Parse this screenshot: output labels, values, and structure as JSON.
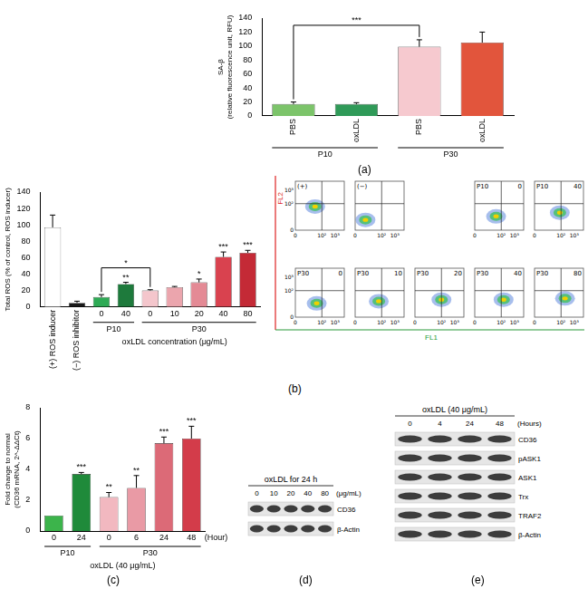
{
  "chart_data": [
    {
      "panel": "(a)",
      "type": "bar",
      "y_label": [
        "SA-β",
        "(relative fluorescence unit, RFU)"
      ],
      "categories": [
        "PBS",
        "oxLDL",
        "PBS",
        "oxLDL"
      ],
      "groups": [
        "P10",
        "P10",
        "P30",
        "P30"
      ],
      "values": [
        17,
        17,
        99,
        105
      ],
      "errors": [
        3,
        2,
        10,
        15
      ],
      "colors": [
        "#7cc46a",
        "#2f9a58",
        "#f6c9cf",
        "#e2553c"
      ],
      "ylim": [
        0,
        140
      ],
      "yticks": [
        0,
        20,
        40,
        60,
        80,
        100,
        120,
        140
      ],
      "grid": false,
      "brackets": [
        {
          "between": [
            0,
            2
          ],
          "label": "***"
        }
      ]
    },
    {
      "panel": "(b)",
      "type": "bar",
      "y_label": "Total ROS (% of control, ROS inducer)",
      "x_label": "oxLDL concentration (μg/mL)",
      "categories": [
        "(+) ROS inducer",
        "(−) ROS inhibitor",
        "0",
        "40",
        "0",
        "10",
        "20",
        "40",
        "80"
      ],
      "groups": [
        null,
        null,
        "P10",
        "P10",
        "P30",
        "P30",
        "P30",
        "P30",
        "P30"
      ],
      "values": [
        97,
        5,
        12,
        28,
        20,
        24,
        30,
        61,
        66
      ],
      "errors": [
        15,
        2,
        3,
        2,
        1,
        1,
        4,
        6,
        3
      ],
      "annotations": [
        null,
        null,
        null,
        "**",
        null,
        null,
        "*",
        "***",
        "***"
      ],
      "colors": [
        "#ffffff",
        "#1a1a1a",
        "#2eab55",
        "#1e7a3c",
        "#f4c6cc",
        "#eba5ad",
        "#e48a95",
        "#d9424f",
        "#c42a36"
      ],
      "ylim": [
        0,
        140
      ],
      "yticks": [
        0,
        20,
        40,
        60,
        80,
        100,
        120,
        140
      ],
      "grid": false,
      "brackets": [
        {
          "between": [
            2,
            4
          ],
          "label": "*"
        }
      ]
    },
    {
      "panel": "(c)",
      "type": "bar",
      "y_label": [
        "Fold change to normal",
        "(CD36 mRNA, 2^-ΔΔCt)"
      ],
      "x_label": "oxLDL (40 μg/mL)",
      "x_unit": "(Hour)",
      "categories": [
        "0",
        "24",
        "0",
        "6",
        "24",
        "48"
      ],
      "groups": [
        "P10",
        "P10",
        "P30",
        "P30",
        "P30",
        "P30"
      ],
      "values": [
        1,
        3.7,
        2.2,
        2.8,
        5.7,
        6.0
      ],
      "errors": [
        0,
        0.1,
        0.3,
        0.8,
        0.4,
        0.8
      ],
      "annotations": [
        null,
        "***",
        "**",
        "**",
        "***",
        "***"
      ],
      "colors": [
        "#3cb44b",
        "#1f8a3a",
        "#f2b8c0",
        "#e99aa5",
        "#dc6a77",
        "#d33c4a"
      ],
      "ylim": [
        0,
        8
      ],
      "yticks": [
        0,
        2,
        4,
        6,
        8
      ],
      "grid": false
    }
  ],
  "cytometry": {
    "x_label": "FL1",
    "y_label": "FL2",
    "lim": [
      0,
      5000
    ],
    "ticks": [
      {
        "value": 0,
        "label": "0"
      },
      {
        "value": 100,
        "label": "10²"
      },
      {
        "value": 1000,
        "label": "10³"
      }
    ],
    "gate": [
      100,
      100
    ],
    "panels": [
      {
        "tag": "(+)",
        "cluster": [
          30,
          60
        ]
      },
      {
        "tag": "(−)",
        "cluster": [
          5,
          5
        ]
      },
      {
        "tag": "P10",
        "dose": 0,
        "cluster": [
          40,
          10
        ]
      },
      {
        "tag": "P10",
        "dose": 40,
        "cluster": [
          80,
          20
        ]
      },
      {
        "tag": "P30",
        "dose": 0,
        "cluster": [
          40,
          10
        ]
      },
      {
        "tag": "P30",
        "dose": 10,
        "cluster": [
          60,
          15
        ]
      },
      {
        "tag": "P30",
        "dose": 20,
        "cluster": [
          100,
          20
        ]
      },
      {
        "tag": "P30",
        "dose": 40,
        "cluster": [
          150,
          20
        ]
      },
      {
        "tag": "P30",
        "dose": 80,
        "cluster": [
          200,
          25
        ]
      }
    ]
  },
  "blots": [
    {
      "panel": "(d)",
      "title": "oxLDL for 24 h",
      "lanes": [
        0,
        10,
        20,
        40,
        80
      ],
      "lane_unit": "(μg/mL)",
      "rows": [
        "CD36",
        "β-Actin"
      ]
    },
    {
      "panel": "(e)",
      "title": "oxLDL (40 μg/mL)",
      "lanes": [
        0,
        4,
        24,
        48
      ],
      "lane_unit": "(Hours)",
      "rows": [
        "CD36",
        "pASK1",
        "ASK1",
        "Trx",
        "TRAF2",
        "β-Actin"
      ]
    }
  ]
}
